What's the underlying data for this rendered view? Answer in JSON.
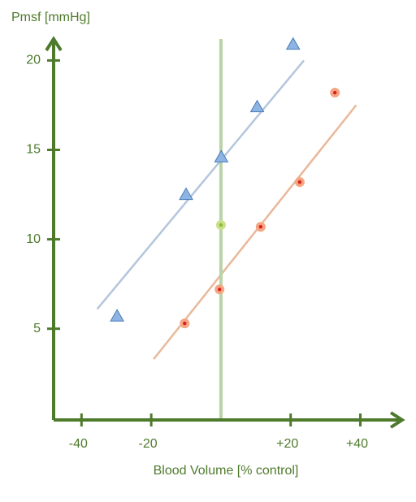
{
  "chart_data": {
    "type": "scatter",
    "ylabel": "Pmsf [mmHg]",
    "xlabel": "Blood Volume [% control]",
    "xlim": [
      -48,
      52
    ],
    "xticks": [
      -40,
      -20,
      {
        "value": 20,
        "label": "+20"
      },
      {
        "value": 40,
        "label": "+40"
      }
    ],
    "ylim": [
      -0.1,
      21.2
    ],
    "yticks": [
      5,
      10,
      15,
      20
    ],
    "axis_color": "#4e7a2c",
    "series": [
      {
        "type": "line",
        "color": "#b4c6dc",
        "x": [
          -35.5,
          23.8
        ],
        "values": [
          6.1,
          20.0
        ]
      },
      {
        "type": "line",
        "color": "#e9b89a",
        "x": [
          -19.3,
          38.8
        ],
        "values": [
          3.3,
          17.5
        ]
      },
      {
        "type": "line",
        "color": "#b9d3a8",
        "x": [
          0,
          0
        ],
        "values": [
          -0.1,
          21.2
        ]
      },
      {
        "type": "scatter",
        "marker": "triangle",
        "color": "#8db4e2",
        "x": [
          -29.8,
          -10,
          0.1,
          10.4,
          20.7
        ],
        "values": [
          5.7,
          12.5,
          14.6,
          17.4,
          20.9
        ]
      },
      {
        "type": "scatter",
        "marker": "circle",
        "color": "#f4a582",
        "x": [
          -10.4,
          -0.4,
          11.4,
          22.6,
          32.7
        ],
        "values": [
          5.3,
          7.2,
          10.7,
          13.2,
          18.2
        ]
      },
      {
        "type": "scatter",
        "marker": "circle",
        "color": "#c9e08a",
        "x": [
          0
        ],
        "values": [
          10.8
        ]
      }
    ]
  }
}
